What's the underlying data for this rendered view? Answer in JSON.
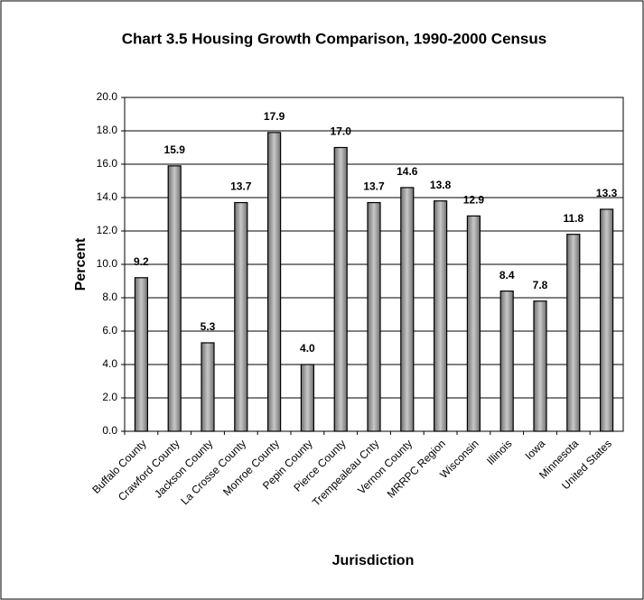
{
  "chart_data": {
    "type": "bar",
    "title": "Chart 3.5 Housing Growth Comparison, 1990-2000 Census",
    "x_label": "Jurisdiction",
    "y_label": "Percent",
    "categories": [
      "Buffalo County",
      "Crawford County",
      "Jackson County",
      "La Crosse County",
      "Monroe County",
      "Pepin County",
      "Pierce County",
      "Trempealeau Cnty",
      "Vernon County",
      "MRRPC Region",
      "Wisconsin",
      "Illinois",
      "Iowa",
      "Minnesota",
      "United States"
    ],
    "values": [
      9.2,
      15.9,
      5.3,
      13.7,
      17.9,
      4.0,
      17.0,
      13.7,
      14.6,
      13.8,
      12.9,
      8.4,
      7.8,
      11.8,
      13.3
    ],
    "value_labels": [
      "9.2",
      "15.9",
      "5.3",
      "13.7",
      "17.9",
      "4.0",
      "17.0",
      "13.7",
      "14.6",
      "13.8",
      "12.9",
      "8.4",
      "7.8",
      "11.8",
      "13.3"
    ],
    "color": "#a0a0a0",
    "ylim": [
      0,
      20
    ],
    "yticks": [
      {
        "value": 0,
        "label": "0.0"
      },
      {
        "value": 2,
        "label": "2.0"
      },
      {
        "value": 4,
        "label": "4.0"
      },
      {
        "value": 6,
        "label": "6.0"
      },
      {
        "value": 8,
        "label": "8.0"
      },
      {
        "value": 10,
        "label": "10.0"
      },
      {
        "value": 12,
        "label": "12.0"
      },
      {
        "value": 14,
        "label": "14.0"
      },
      {
        "value": 16,
        "label": "16.0"
      },
      {
        "value": 18,
        "label": "18.0"
      },
      {
        "value": 20,
        "label": "20.0"
      }
    ],
    "grid": true
  }
}
